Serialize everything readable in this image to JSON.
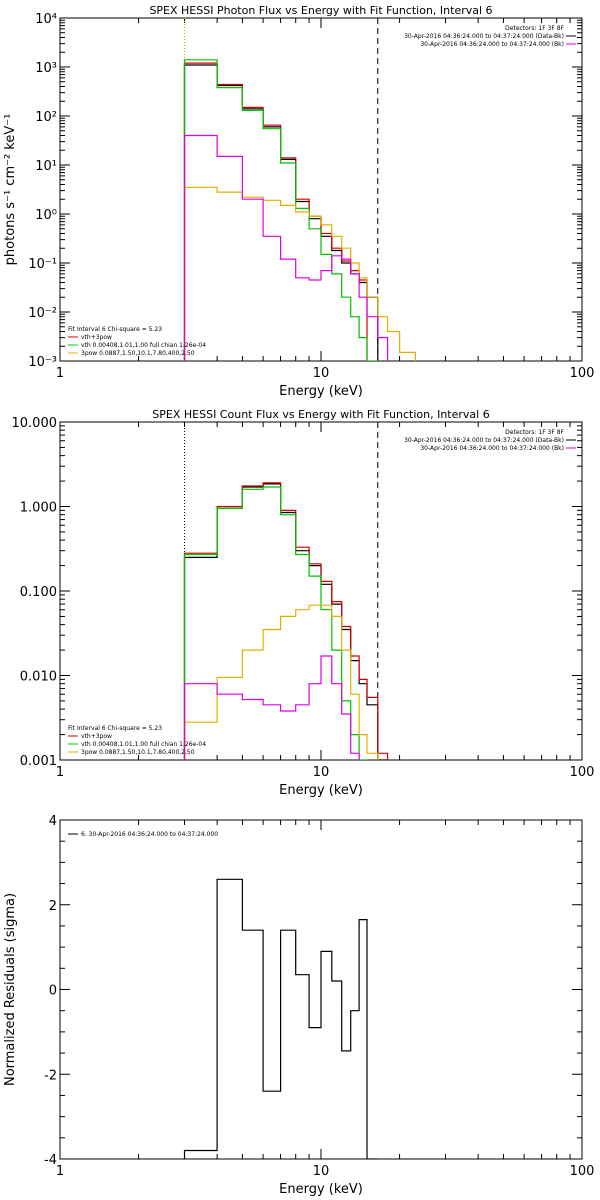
{
  "chart_data": [
    {
      "type": "line",
      "title": "SPEX HESSI Photon Flux vs Energy with Fit Function, Interval 6",
      "xlabel": "Energy (keV)",
      "ylabel": "photons s⁻¹ cm⁻² keV⁻¹",
      "xscale": "log",
      "yscale": "log",
      "xlim": [
        1,
        100
      ],
      "ylim": [
        0.001,
        10000
      ],
      "x_ticks": [
        "1",
        "10",
        "100"
      ],
      "y_ticks": [
        "10⁻³",
        "10⁻²",
        "10⁻¹",
        "10⁰",
        "10¹",
        "10²",
        "10³",
        "10⁴"
      ],
      "vlines": [
        {
          "x": 3.0,
          "style": "dotted",
          "color": "#000000"
        },
        {
          "x": 3.0,
          "style": "dotted",
          "color": "#e0a000"
        },
        {
          "x": 16.5,
          "style": "dashed",
          "color": "#000000"
        }
      ],
      "legend_top_right": [
        {
          "text": "Detectors: 1F 3F 8F",
          "color": null
        },
        {
          "text": "30-Apr-2016 04:36:24.000 to 04:37:24.000 (Data-Bk)",
          "color": "#000000"
        },
        {
          "text": "30-Apr-2016 04:36:24.000 to 04:37:24.000 (Bk)",
          "color": "#e000e0"
        }
      ],
      "legend_bottom_left": [
        {
          "text": "Fit Interval  6    Chi-square = 5.23",
          "color": null
        },
        {
          "text": "vth+3pow",
          "color": "#d00000"
        },
        {
          "text": "vth 0.00408,1.01,1.00  full chian 1.26e-04",
          "color": "#00d000"
        },
        {
          "text": "3pow 0.0887,1.50,10.1,7.80,400,2.50",
          "color": "#e0b000"
        }
      ],
      "edges": [
        3.0,
        4.0,
        5.0,
        6.0,
        7.0,
        8.0,
        9.0,
        10.0,
        11.0,
        12.0,
        13.0,
        14.0,
        15.0,
        16.5,
        18.0,
        20.0,
        23.0
      ],
      "series": [
        {
          "name": "Data-Bk",
          "color": "#000000",
          "values": [
            1100,
            420,
            140,
            60,
            13,
            1.8,
            0.8,
            0.35,
            0.18,
            0.1,
            0.06,
            0.04,
            0.02,
            null,
            null,
            null
          ]
        },
        {
          "name": "vth+3pow",
          "color": "#d00000",
          "values": [
            1200,
            440,
            150,
            65,
            14,
            2.0,
            0.9,
            0.4,
            0.2,
            0.11,
            0.07,
            0.045,
            null,
            null,
            null,
            null
          ]
        },
        {
          "name": "vth",
          "color": "#00c000",
          "values": [
            1400,
            380,
            130,
            55,
            11,
            1.3,
            0.5,
            0.15,
            0.06,
            0.02,
            0.008,
            0.003,
            0.001,
            null,
            null,
            null
          ]
        },
        {
          "name": "3pow",
          "color": "#e0b000",
          "values": [
            3.5,
            2.8,
            2.2,
            1.9,
            1.5,
            1.1,
            0.9,
            0.6,
            0.35,
            0.2,
            0.1,
            0.05,
            0.02,
            0.008,
            0.004,
            0.0015
          ]
        },
        {
          "name": "Bk",
          "color": "#e000e0",
          "values": [
            40,
            15,
            2.0,
            0.35,
            0.12,
            0.05,
            0.045,
            0.07,
            0.14,
            0.12,
            0.06,
            0.02,
            0.008,
            0.003,
            null,
            null
          ]
        }
      ]
    },
    {
      "type": "line",
      "title": "SPEX HESSI Count Flux vs Energy with Fit Function, Interval 6",
      "xlabel": "Energy (keV)",
      "ylabel": "",
      "xscale": "log",
      "yscale": "log",
      "xlim": [
        1,
        100
      ],
      "ylim": [
        0.001,
        10
      ],
      "x_ticks": [
        "1",
        "10",
        "100"
      ],
      "y_ticks": [
        "0.001",
        "0.010",
        "0.100",
        "1.000",
        "10.000"
      ],
      "vlines": [
        {
          "x": 3.0,
          "style": "dotted",
          "color": "#000000"
        },
        {
          "x": 16.5,
          "style": "dashed",
          "color": "#000000"
        }
      ],
      "legend_top_right": [
        {
          "text": "Detectors: 1F 3F 8F",
          "color": null
        },
        {
          "text": "30-Apr-2016 04:36:24.000 to 04:37:24.000 (Data-Bk)",
          "color": "#000000"
        },
        {
          "text": "30-Apr-2016 04:36:24.000 to 04:37:24.000 (Bk)",
          "color": "#e000e0"
        }
      ],
      "legend_bottom_left": [
        {
          "text": "Fit Interval  6    Chi-square = 5.23",
          "color": null
        },
        {
          "text": "vth+3pow",
          "color": "#d00000"
        },
        {
          "text": "vth 0.00408,1.01,1.00  full chian 1.26e-04",
          "color": "#00d000"
        },
        {
          "text": "3pow 0.0887,1.50,10.1,7.80,400,2.50",
          "color": "#e0b000"
        }
      ],
      "edges": [
        3.0,
        4.0,
        5.0,
        6.0,
        7.0,
        8.0,
        9.0,
        10.0,
        11.0,
        12.0,
        13.0,
        14.0,
        15.0,
        16.5,
        18.0,
        20.0
      ],
      "series": [
        {
          "name": "Data-Bk",
          "color": "#000000",
          "values": [
            0.25,
            0.95,
            1.7,
            1.85,
            0.85,
            0.3,
            0.2,
            0.12,
            0.07,
            0.035,
            0.015,
            0.008,
            0.0045,
            0.001,
            null
          ]
        },
        {
          "name": "vth+3pow",
          "color": "#d00000",
          "values": [
            0.28,
            1.0,
            1.75,
            1.9,
            0.9,
            0.33,
            0.21,
            0.13,
            0.075,
            0.038,
            0.017,
            0.009,
            0.0055,
            0.0012,
            null
          ]
        },
        {
          "name": "vth",
          "color": "#00c000",
          "values": [
            0.27,
            0.95,
            1.6,
            1.7,
            0.8,
            0.27,
            0.15,
            0.06,
            0.02,
            0.005,
            0.002,
            0.001,
            null,
            null,
            null
          ]
        },
        {
          "name": "3pow",
          "color": "#e0b000",
          "values": [
            0.0028,
            0.0095,
            0.02,
            0.035,
            0.05,
            0.06,
            0.068,
            0.068,
            0.05,
            0.02,
            0.006,
            0.002,
            0.0012,
            null,
            null
          ]
        },
        {
          "name": "Bk",
          "color": "#e000e0",
          "values": [
            0.008,
            0.006,
            0.0052,
            0.0045,
            0.0038,
            0.0045,
            0.008,
            0.017,
            0.008,
            0.0035,
            0.0012,
            null,
            null,
            null,
            null
          ]
        }
      ]
    },
    {
      "type": "line",
      "title": "",
      "xlabel": "Energy (keV)",
      "ylabel": "Normalized Residuals (sigma)",
      "xscale": "log",
      "yscale": "linear",
      "xlim": [
        1,
        100
      ],
      "ylim": [
        -4,
        4
      ],
      "x_ticks": [
        "1",
        "10",
        "100"
      ],
      "y_ticks": [
        "-4",
        "-2",
        "0",
        "2",
        "4"
      ],
      "legend_top_left": [
        {
          "text": "6. 30-Apr-2016 04:36:24.000 to 04:37:24.000",
          "color": "#000000"
        }
      ],
      "edges": [
        3.0,
        4.0,
        5.0,
        6.0,
        7.0,
        8.0,
        9.0,
        10.0,
        11.0,
        12.0,
        13.0,
        14.0,
        15.0,
        16.5
      ],
      "series": [
        {
          "name": "residuals",
          "color": "#000000",
          "values": [
            -3.8,
            2.6,
            1.4,
            -2.4,
            1.4,
            0.35,
            -0.9,
            0.9,
            0.2,
            -1.45,
            -0.5,
            1.65,
            -4.0
          ]
        }
      ]
    }
  ]
}
